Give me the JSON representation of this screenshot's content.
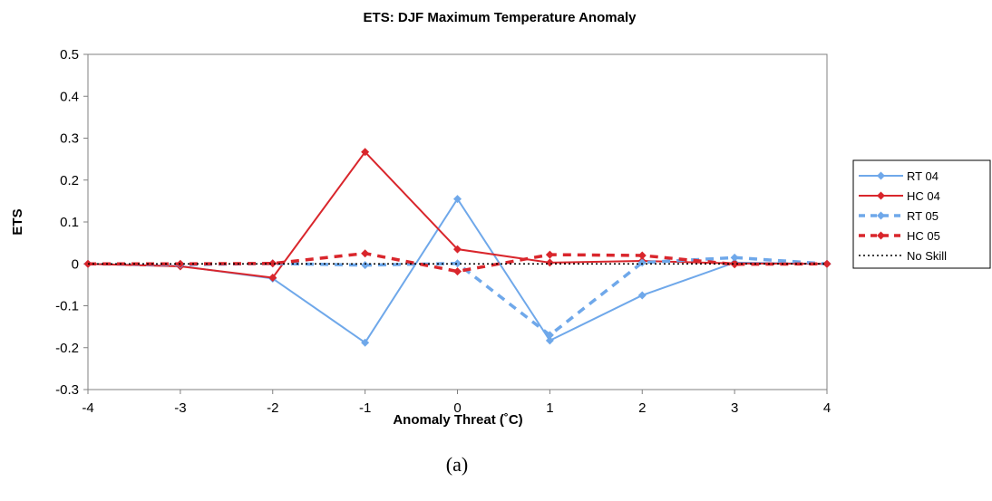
{
  "chart_data": {
    "type": "line",
    "title": "ETS: DJF Maximum Temperature Anomaly",
    "xlabel": "Anomaly Threat (˚C)",
    "ylabel": "ETS",
    "caption": "(a)",
    "x": [
      -4,
      -3,
      -2,
      -1,
      0,
      1,
      2,
      3,
      4
    ],
    "xlim": [
      -4,
      4
    ],
    "ylim": [
      -0.3,
      0.5
    ],
    "x_ticks": [
      "-4",
      "-3",
      "-2",
      "-1",
      "0",
      "1",
      "2",
      "3",
      "4"
    ],
    "y_ticks": [
      "0.5",
      "0.4",
      "0.3",
      "0.2",
      "0.1",
      "0",
      "-0.1",
      "-0.2",
      "-0.3"
    ],
    "grid": false,
    "legend_position": "right",
    "series": [
      {
        "name": "RT 04",
        "color": "#6fa8ea",
        "style": "solid",
        "values": [
          0,
          -0.005,
          -0.035,
          -0.188,
          0.155,
          -0.183,
          -0.075,
          0.003,
          0
        ]
      },
      {
        "name": "HC 04",
        "color": "#d9262c",
        "style": "solid",
        "values": [
          0,
          -0.006,
          -0.033,
          0.267,
          0.035,
          0.003,
          0.007,
          0.001,
          0
        ]
      },
      {
        "name": "RT 05",
        "color": "#6fa8ea",
        "style": "dashed",
        "values": [
          0,
          -0.002,
          0.001,
          -0.003,
          0.001,
          -0.17,
          0.003,
          0.015,
          0
        ]
      },
      {
        "name": "HC 05",
        "color": "#d9262c",
        "style": "dashed",
        "values": [
          0,
          0,
          0.001,
          0.025,
          -0.018,
          0.022,
          0.02,
          -0.001,
          0
        ]
      },
      {
        "name": "No Skill",
        "color": "#000000",
        "style": "dotted",
        "values": [
          0,
          0,
          0,
          0,
          0,
          0,
          0,
          0,
          0
        ]
      }
    ]
  }
}
